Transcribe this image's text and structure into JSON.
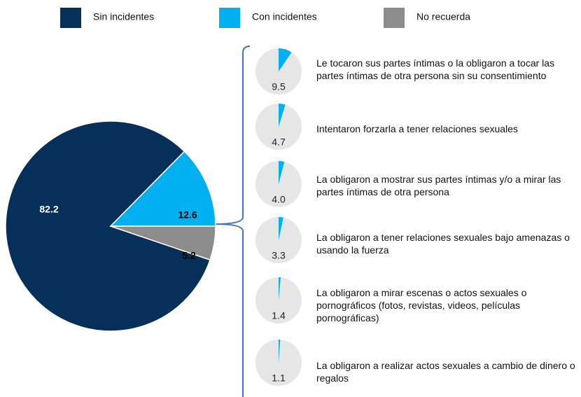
{
  "chart_data": [
    {
      "type": "pie",
      "categories": [
        "Sin incidentes",
        "Con incidentes",
        "No recuerda"
      ],
      "values": [
        82.2,
        12.6,
        5.2
      ],
      "colors": [
        "#06305a",
        "#00b0f0",
        "#8c8c8c"
      ],
      "legend": "top"
    },
    {
      "type": "pie-small-multiples",
      "categories": [
        "Le tocaron sus partes íntimas o la obligaron a tocar las partes íntimas de otra persona sin su consentimiento",
        "Intentaron forzarla a tener relaciones sexuales",
        "La obligaron a mostrar sus partes íntimas y/o a mirar las partes íntimas de otra persona",
        "La obligaron a tener relaciones sexuales bajo amenazas o usando la fuerza",
        "La obligaron a mirar escenas o actos sexuales o pornográficos (fotos, revistas, videos, películas pornográficas)",
        "La obligaron a realizar actos sexuales a cambio de dinero o regalos"
      ],
      "values": [
        9.5,
        4.7,
        4.0,
        3.3,
        1.4,
        1.1
      ],
      "value_labels": [
        "9.5",
        "4.7",
        "4.0",
        "3.3",
        "1.4",
        "1.1"
      ],
      "color": "#00b0f0"
    }
  ]
}
